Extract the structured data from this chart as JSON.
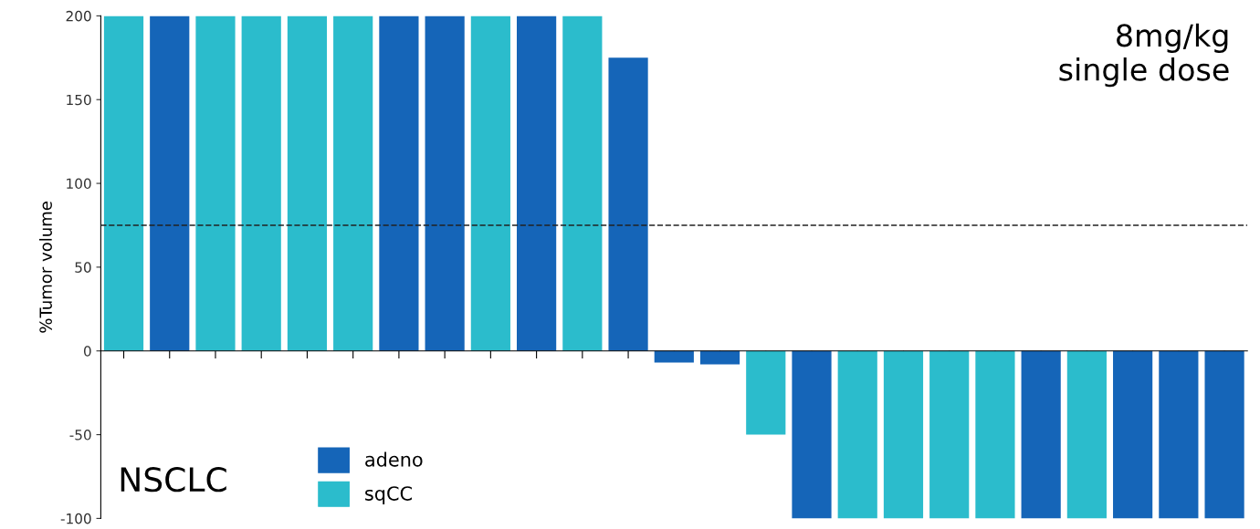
{
  "chart_data": {
    "type": "bar",
    "stacked": true,
    "ylabel": "%Tumor volume",
    "categories": [
      null,
      null,
      null,
      null,
      null,
      null,
      null,
      null,
      null,
      null,
      null,
      null,
      null,
      null,
      null,
      null,
      null,
      null,
      null,
      null,
      null,
      null,
      null,
      null,
      null
    ],
    "series": [
      {
        "name": "adeno",
        "color": "#1565b8",
        "values": [
          null,
          200,
          null,
          null,
          null,
          null,
          200,
          200,
          null,
          200,
          null,
          175,
          -7,
          -8,
          null,
          -100,
          null,
          null,
          null,
          null,
          -100,
          null,
          -100,
          -100,
          -100
        ]
      },
      {
        "name": "sqCC",
        "color": "#2bbccc",
        "values": [
          200,
          null,
          200,
          200,
          200,
          200,
          null,
          null,
          200,
          null,
          200,
          null,
          null,
          null,
          -50,
          null,
          -100,
          -100,
          -100,
          -100,
          null,
          -100,
          null,
          null,
          null
        ]
      }
    ],
    "ylim": [
      -100,
      200
    ],
    "yticks": [
      -100,
      -50,
      0,
      50,
      100,
      150,
      200
    ],
    "ref_lines": [
      {
        "axis": "y",
        "value": 75,
        "color": "#222222",
        "line_style": "dashed"
      }
    ],
    "annotations": [
      "8mg/kg\nsingle dose",
      "NSCLC"
    ],
    "legend": "bottom left"
  }
}
